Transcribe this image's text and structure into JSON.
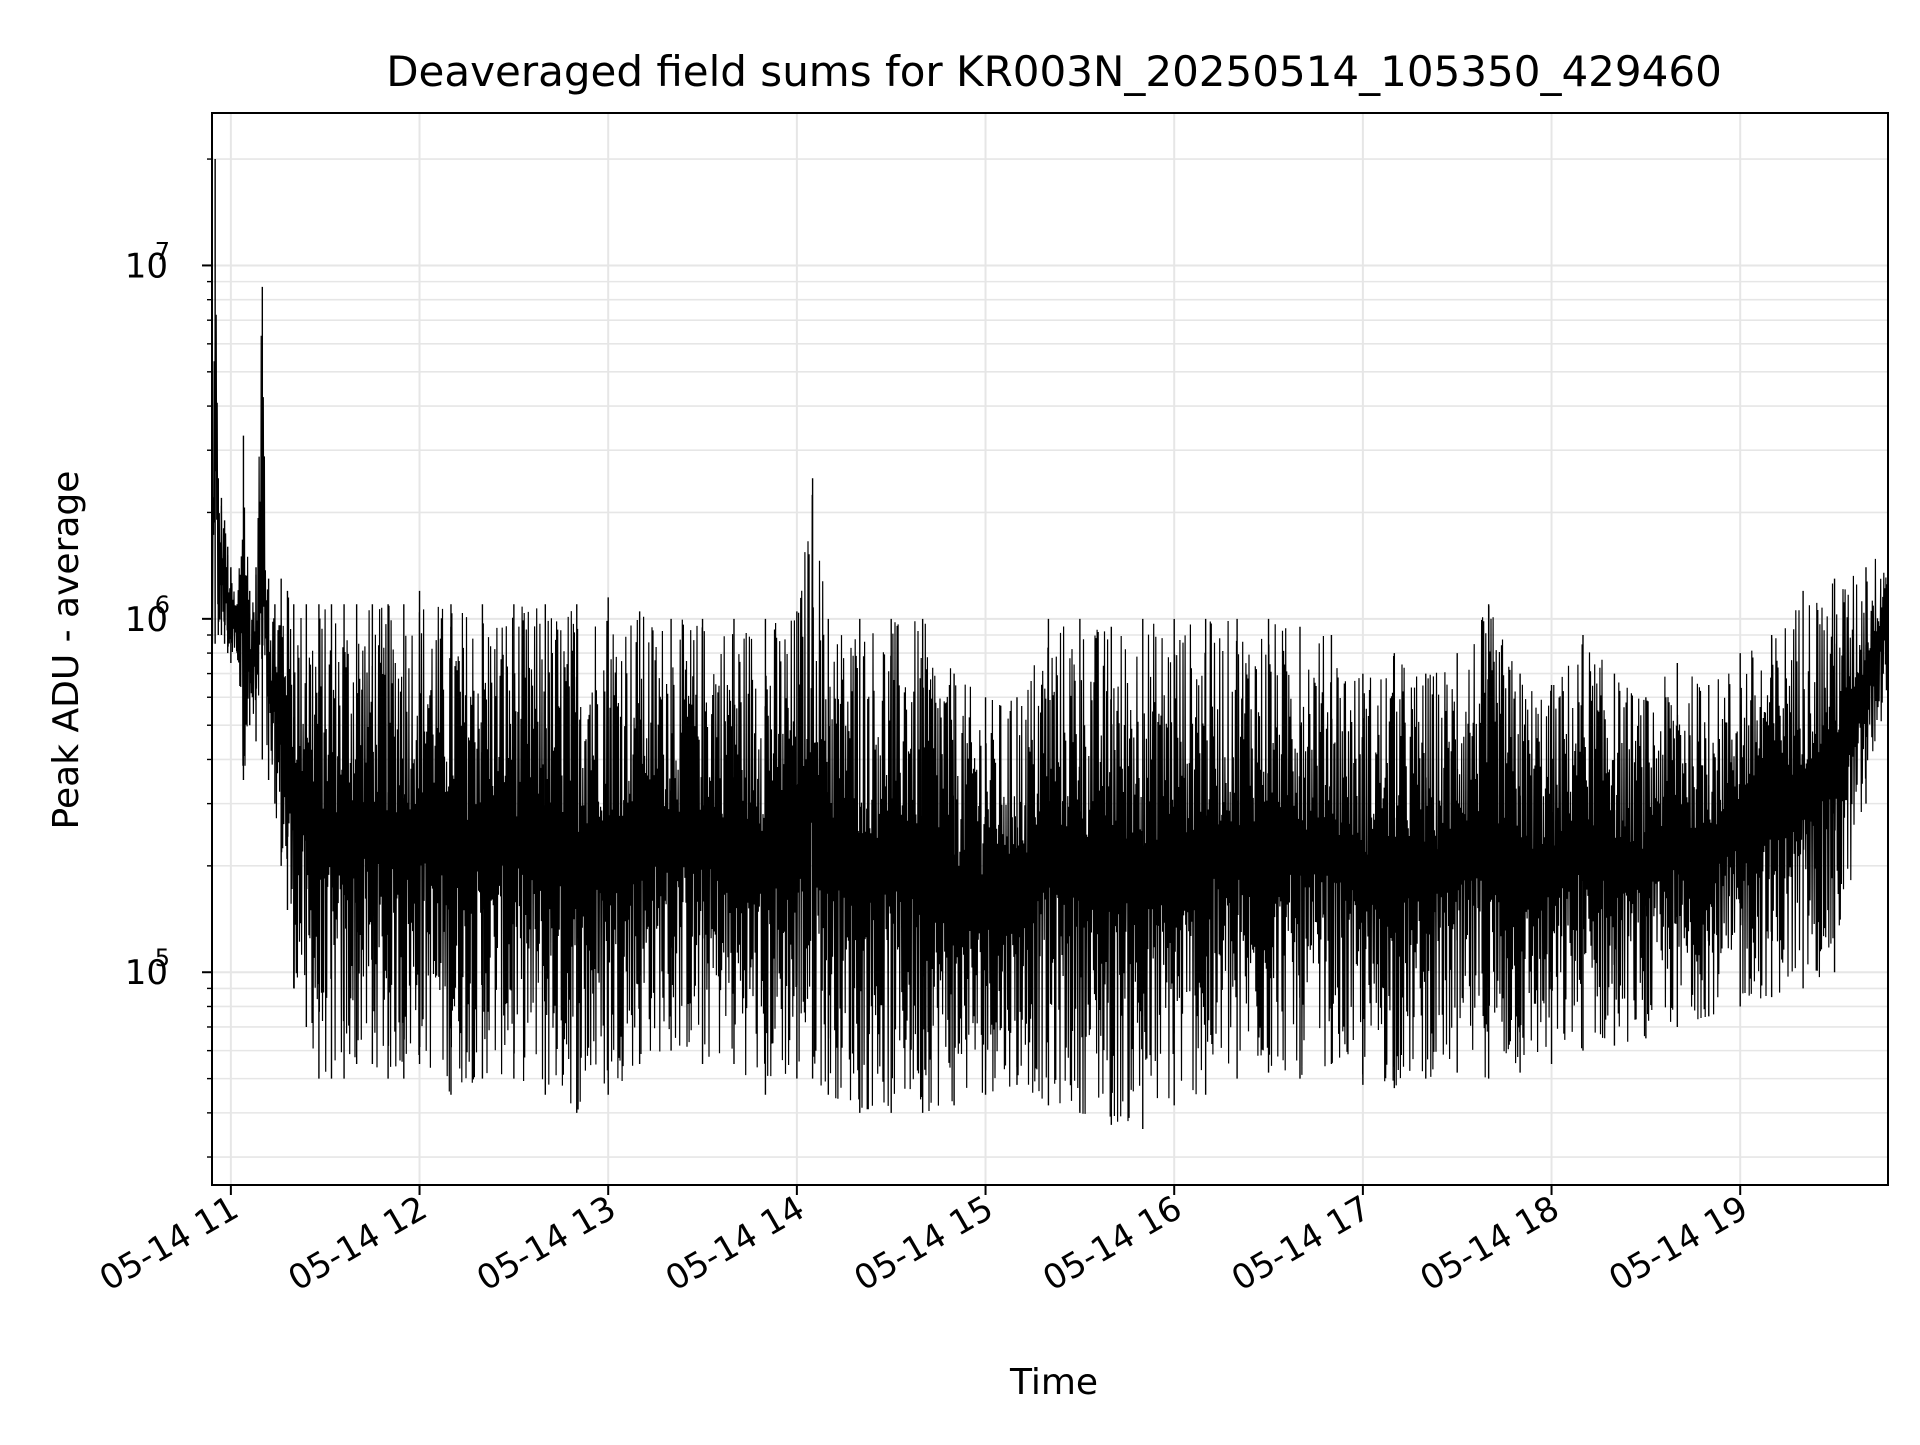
{
  "chart_data": {
    "type": "line",
    "title": "Deaveraged field sums for KR003N_20250514_105350_429460",
    "xlabel": "Time",
    "ylabel": "Peak ADU - average",
    "y_scale": "log",
    "ylim": [
      25000,
      27000000
    ],
    "xlim": [
      "2025-05-14 10:54",
      "2025-05-14 19:47"
    ],
    "grid": true,
    "line_color": "#000000",
    "x_ticks": [
      {
        "at": "2025-05-14 11:00",
        "label": "05-14 11"
      },
      {
        "at": "2025-05-14 12:00",
        "label": "05-14 12"
      },
      {
        "at": "2025-05-14 13:00",
        "label": "05-14 13"
      },
      {
        "at": "2025-05-14 14:00",
        "label": "05-14 14"
      },
      {
        "at": "2025-05-14 15:00",
        "label": "05-14 15"
      },
      {
        "at": "2025-05-14 16:00",
        "label": "05-14 16"
      },
      {
        "at": "2025-05-14 17:00",
        "label": "05-14 17"
      },
      {
        "at": "2025-05-14 18:00",
        "label": "05-14 18"
      },
      {
        "at": "2025-05-14 19:00",
        "label": "05-14 19"
      }
    ],
    "y_ticks": [
      {
        "value": 100000,
        "base": "10",
        "exp": "5"
      },
      {
        "value": 1000000,
        "base": "10",
        "exp": "6"
      },
      {
        "value": 10000000,
        "base": "10",
        "exp": "7"
      }
    ],
    "series": [
      {
        "x": [
          "2025-05-14 10:54",
          "2025-05-14 10:55",
          "2025-05-14 10:56",
          "2025-05-14 10:57",
          "2025-05-14 10:58",
          "2025-05-14 10:59",
          "2025-05-14 11:00",
          "2025-05-14 11:02",
          "2025-05-14 11:04",
          "2025-05-14 11:06",
          "2025-05-14 11:08",
          "2025-05-14 11:10",
          "2025-05-14 11:12",
          "2025-05-14 11:14",
          "2025-05-14 11:16",
          "2025-05-14 11:18",
          "2025-05-14 11:20",
          "2025-05-14 11:24",
          "2025-05-14 11:28",
          "2025-05-14 11:32",
          "2025-05-14 11:36",
          "2025-05-14 11:40",
          "2025-05-14 11:45",
          "2025-05-14 11:50",
          "2025-05-14 11:55",
          "2025-05-14 12:00",
          "2025-05-14 12:10",
          "2025-05-14 12:20",
          "2025-05-14 12:30",
          "2025-05-14 12:40",
          "2025-05-14 12:50",
          "2025-05-14 13:00",
          "2025-05-14 13:10",
          "2025-05-14 13:20",
          "2025-05-14 13:30",
          "2025-05-14 13:40",
          "2025-05-14 13:50",
          "2025-05-14 14:00",
          "2025-05-14 14:05",
          "2025-05-14 14:10",
          "2025-05-14 14:20",
          "2025-05-14 14:30",
          "2025-05-14 14:40",
          "2025-05-14 14:50",
          "2025-05-14 15:00",
          "2025-05-14 15:10",
          "2025-05-14 15:20",
          "2025-05-14 15:30",
          "2025-05-14 15:40",
          "2025-05-14 15:50",
          "2025-05-14 16:00",
          "2025-05-14 16:10",
          "2025-05-14 16:20",
          "2025-05-14 16:30",
          "2025-05-14 16:40",
          "2025-05-14 16:50",
          "2025-05-14 17:00",
          "2025-05-14 17:10",
          "2025-05-14 17:20",
          "2025-05-14 17:30",
          "2025-05-14 17:40",
          "2025-05-14 17:50",
          "2025-05-14 18:00",
          "2025-05-14 18:10",
          "2025-05-14 18:20",
          "2025-05-14 18:30",
          "2025-05-14 18:40",
          "2025-05-14 18:50",
          "2025-05-14 19:00",
          "2025-05-14 19:10",
          "2025-05-14 19:20",
          "2025-05-14 19:30",
          "2025-05-14 19:40",
          "2025-05-14 19:47"
        ],
        "y_high": [
          1000000,
          20000000,
          2500000,
          2200000,
          1900000,
          1600000,
          1400000,
          1100000,
          3300000,
          1200000,
          1400000,
          8700000,
          1300000,
          1100000,
          1300000,
          1200000,
          1100000,
          1100000,
          1100000,
          1100000,
          1100000,
          1100000,
          1100000,
          1100000,
          1100000,
          1200000,
          1100000,
          1100000,
          1100000,
          1100000,
          1100000,
          1150000,
          1050000,
          1000000,
          1000000,
          1000000,
          1000000,
          1050000,
          2500000,
          1000000,
          1000000,
          1000000,
          1000000,
          700000,
          600000,
          600000,
          1000000,
          1000000,
          950000,
          1000000,
          1000000,
          1000000,
          1000000,
          1000000,
          950000,
          900000,
          700000,
          800000,
          700000,
          800000,
          1100000,
          700000,
          650000,
          900000,
          700000,
          600000,
          750000,
          650000,
          800000,
          900000,
          1200000,
          1300000,
          1400000,
          1700000
        ],
        "y_low": [
          750000,
          850000,
          900000,
          900000,
          850000,
          800000,
          750000,
          800000,
          350000,
          500000,
          450000,
          400000,
          350000,
          300000,
          200000,
          150000,
          90000,
          70000,
          50000,
          50000,
          50000,
          55000,
          55000,
          50000,
          50000,
          55000,
          45000,
          50000,
          50000,
          45000,
          40000,
          45000,
          55000,
          60000,
          55000,
          55000,
          45000,
          50000,
          50000,
          45000,
          40000,
          40000,
          40000,
          42000,
          45000,
          48000,
          42000,
          40000,
          37000,
          36000,
          42000,
          45000,
          50000,
          52000,
          50000,
          55000,
          48000,
          47000,
          50000,
          52000,
          50000,
          52000,
          55000,
          60000,
          62000,
          65000,
          70000,
          75000,
          80000,
          85000,
          90000,
          100000,
          300000,
          650000
        ]
      }
    ]
  }
}
